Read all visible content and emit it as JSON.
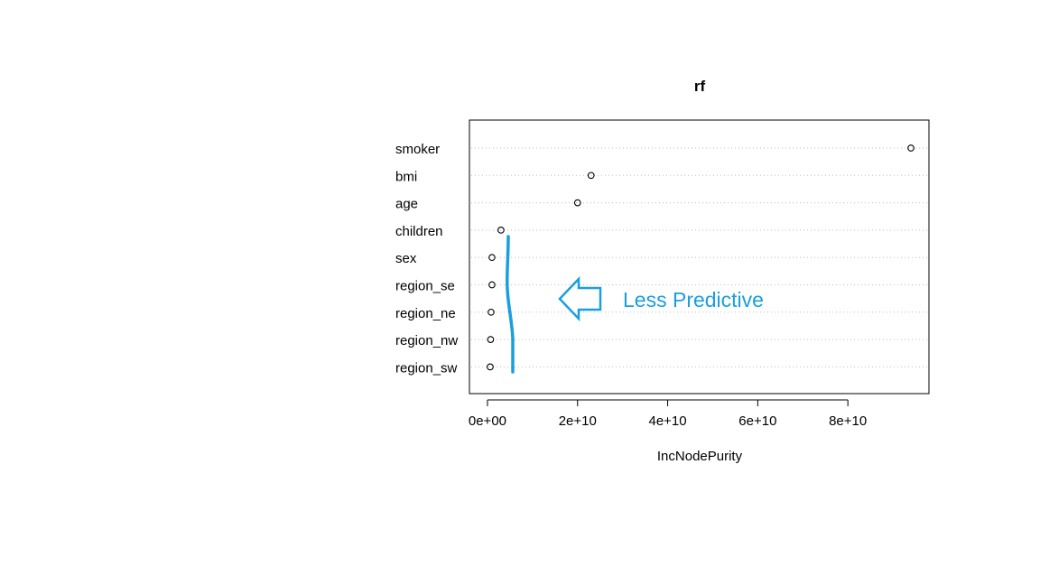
{
  "chart_data": {
    "type": "scatter",
    "title": "rf",
    "xlabel": "IncNodePurity",
    "ylabel": "",
    "xlim": [
      -4000000000,
      98000000000
    ],
    "xticks": [
      0,
      20000000000,
      40000000000,
      60000000000,
      80000000000
    ],
    "xtick_labels": [
      "0e+00",
      "2e+10",
      "4e+10",
      "6e+10",
      "8e+10"
    ],
    "grid": "dotted horizontal guides per variable",
    "categories": [
      "smoker",
      "bmi",
      "age",
      "children",
      "sex",
      "region_se",
      "region_ne",
      "region_nw",
      "region_sw"
    ],
    "values": [
      94000000000,
      23000000000,
      20000000000,
      3000000000,
      1000000000,
      1000000000,
      800000000,
      700000000,
      600000000
    ],
    "annotation": {
      "text": "Less Predictive",
      "color": "#1a9fde"
    }
  }
}
